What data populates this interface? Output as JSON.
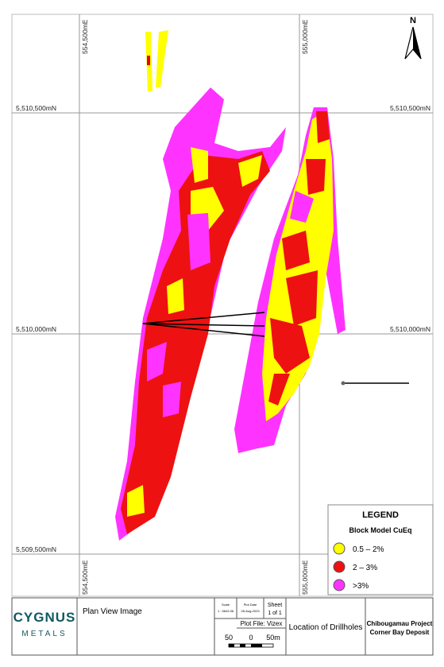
{
  "map": {
    "grid": {
      "top_labels": [
        "554,500mE",
        "555,000mE"
      ],
      "bottom_labels": [
        "554,500mE",
        "555,000mE"
      ],
      "left_labels": [
        "5,510,500mN",
        "5,510,000mN",
        "5,509,500mN"
      ],
      "right_labels": [
        "5,510,500mN",
        "5,510,000mN"
      ]
    },
    "north": "N",
    "legend": {
      "title": "LEGEND",
      "subtitle": "Block Model CuEq",
      "items": [
        "0.5 – 2%",
        "2 – 3%",
        ">3%"
      ]
    }
  },
  "title_block": {
    "logo_top": "CYGNUS",
    "logo_bottom": "METALS",
    "view": "Plan View Image",
    "scale_label": "Scale",
    "scale_value": "1 : 5643.36",
    "plot_date_label": "Plot Date",
    "plot_date": "28-Aug-2023",
    "sheet_label": "Sheet",
    "sheet_value": "1 of 1",
    "plot_file": "Plot File: Vizex",
    "scale_bar": [
      "50",
      "0",
      "50m"
    ],
    "description": "Location of Drillholes",
    "project": "Chibougamau Project",
    "deposit": "Corner Bay Deposit"
  }
}
